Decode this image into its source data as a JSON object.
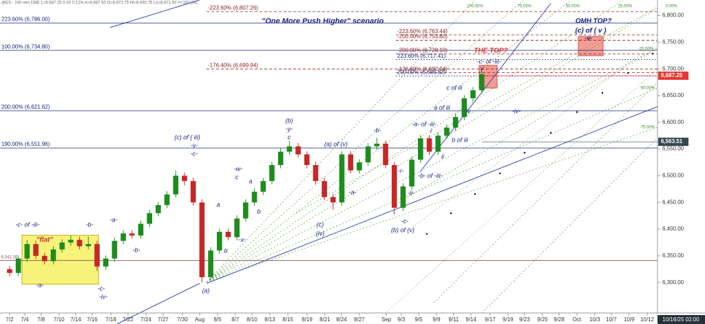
{
  "chart_data": {
    "type": "candlestick",
    "header": "@ES - 240 min  CME  L=6,687.25  0.00  0.12%  A=6,687.50  O=6,673.75  Hi=6,690.75  Lo=6,671.50  V=162,061",
    "x": [
      1,
      1.5,
      2,
      2.5,
      3,
      3.5,
      4,
      4.5,
      5,
      5.5,
      6,
      6.5,
      7,
      7.5,
      8,
      8.5,
      9,
      9.5,
      10,
      10.5,
      11,
      11.5,
      12,
      12.5,
      13,
      13.5,
      14,
      14.5,
      15,
      15.5,
      16,
      16.5,
      17,
      17.5,
      18,
      18.5,
      19,
      19.5,
      20,
      20.5,
      21,
      21.5,
      22,
      22.5,
      23,
      23.5,
      24,
      24.5,
      25,
      25.5,
      26,
      26.5,
      27,
      27.5,
      28
    ],
    "open": [
      6325,
      6318,
      6345,
      6372,
      6350,
      6340,
      6362,
      6375,
      6380,
      6368,
      6372,
      6330,
      6345,
      6378,
      6392,
      6388,
      6410,
      6430,
      6445,
      6465,
      6500,
      6490,
      6450,
      6310,
      6360,
      6395,
      6385,
      6420,
      6450,
      6470,
      6490,
      6520,
      6545,
      6555,
      6540,
      6520,
      6490,
      6460,
      6450,
      6540,
      6510,
      6525,
      6555,
      6560,
      6520,
      6440,
      6480,
      6530,
      6570,
      6545,
      6575,
      6590,
      6610,
      6645,
      6660
    ],
    "close": [
      6318,
      6345,
      6372,
      6350,
      6340,
      6362,
      6375,
      6380,
      6368,
      6372,
      6330,
      6345,
      6378,
      6392,
      6388,
      6410,
      6430,
      6445,
      6465,
      6500,
      6490,
      6450,
      6310,
      6360,
      6395,
      6385,
      6420,
      6450,
      6470,
      6490,
      6520,
      6545,
      6555,
      6540,
      6520,
      6490,
      6460,
      6450,
      6540,
      6510,
      6525,
      6555,
      6560,
      6520,
      6440,
      6480,
      6530,
      6570,
      6545,
      6575,
      6590,
      6610,
      6645,
      6660,
      6690
    ],
    "high": [
      6331,
      6351,
      6380,
      6378,
      6356,
      6368,
      6381,
      6388,
      6386,
      6386,
      6378,
      6351,
      6384,
      6398,
      6398,
      6416,
      6436,
      6451,
      6471,
      6510,
      6506,
      6496,
      6456,
      6366,
      6401,
      6401,
      6426,
      6456,
      6476,
      6496,
      6526,
      6551,
      6565,
      6561,
      6546,
      6526,
      6496,
      6466,
      6546,
      6546,
      6531,
      6561,
      6571,
      6566,
      6526,
      6486,
      6536,
      6576,
      6576,
      6581,
      6596,
      6616,
      6651,
      6666,
      6700
    ],
    "low": [
      6312,
      6312,
      6339,
      6344,
      6334,
      6334,
      6356,
      6369,
      6362,
      6362,
      6322,
      6324,
      6339,
      6372,
      6382,
      6382,
      6404,
      6424,
      6439,
      6459,
      6482,
      6444,
      6300,
      6304,
      6354,
      6379,
      6379,
      6414,
      6444,
      6464,
      6484,
      6514,
      6539,
      6534,
      6514,
      6484,
      6454,
      6436,
      6444,
      6504,
      6504,
      6519,
      6549,
      6514,
      6427,
      6434,
      6474,
      6524,
      6539,
      6539,
      6569,
      6584,
      6604,
      6639,
      6654
    ],
    "up_color": "#1e8c1e",
    "down_color": "#c62828",
    "xlim": [
      0.45,
      38.05
    ],
    "xticks": [
      {
        "value": 1,
        "label": "7/2"
      },
      {
        "value": 1.87,
        "label": "7/4"
      },
      {
        "value": 2.8,
        "label": "7/8"
      },
      {
        "value": 3.83,
        "label": "7/10"
      },
      {
        "value": 4.78,
        "label": "7/14"
      },
      {
        "value": 5.72,
        "label": "7/16"
      },
      {
        "value": 6.79,
        "label": "7/18"
      },
      {
        "value": 7.77,
        "label": "7/22"
      },
      {
        "value": 8.8,
        "label": "7/24"
      },
      {
        "value": 9.78,
        "label": "7/27"
      },
      {
        "value": 10.88,
        "label": "7/30"
      },
      {
        "value": 11.87,
        "label": "Aug"
      },
      {
        "value": 12.89,
        "label": "8/5"
      },
      {
        "value": 13.91,
        "label": "8/7"
      },
      {
        "value": 14.86,
        "label": "8/10"
      },
      {
        "value": 15.88,
        "label": "8/13"
      },
      {
        "value": 16.91,
        "label": "8/15"
      },
      {
        "value": 18.01,
        "label": "8/19"
      },
      {
        "value": 19.03,
        "label": "8/21"
      },
      {
        "value": 19.98,
        "label": "8/24"
      },
      {
        "value": 21,
        "label": "8/27"
      },
      {
        "value": 22.54,
        "label": "Sep"
      },
      {
        "value": 23.4,
        "label": "9/3"
      },
      {
        "value": 24.39,
        "label": "9/5"
      },
      {
        "value": 25.41,
        "label": "9/9"
      },
      {
        "value": 26.39,
        "label": "9/11"
      },
      {
        "value": 27.38,
        "label": "9/14"
      },
      {
        "value": 28.48,
        "label": "9/17"
      },
      {
        "value": 29.5,
        "label": "9/19"
      },
      {
        "value": 30.45,
        "label": "9/23"
      },
      {
        "value": 31.47,
        "label": "9/25"
      },
      {
        "value": 32.42,
        "label": "9/28"
      },
      {
        "value": 33.44,
        "label": "Oct"
      },
      {
        "value": 34.46,
        "label": "10/3"
      },
      {
        "value": 35.41,
        "label": "10/7"
      },
      {
        "value": 36.43,
        "label": "10/9"
      },
      {
        "value": 37.46,
        "label": "10/12"
      }
    ],
    "last_time": "10/16/25 02:00",
    "ylim": [
      6243,
      6829
    ],
    "yticks": [
      {
        "value": 6300,
        "label": "6,300.00"
      },
      {
        "value": 6350,
        "label": "6,350.00"
      },
      {
        "value": 6400,
        "label": "6,400.00"
      },
      {
        "value": 6450,
        "label": "6,450.00"
      },
      {
        "value": 6500,
        "label": "6,500.00"
      },
      {
        "value": 6550,
        "label": "6,550.00"
      },
      {
        "value": 6600,
        "label": "6,600.00"
      },
      {
        "value": 6650,
        "label": "6,650.00"
      },
      {
        "value": 6700,
        "label": "6,700.00"
      },
      {
        "value": 6750,
        "label": "6,750.00"
      },
      {
        "value": 6800,
        "label": "6,800.00"
      }
    ],
    "levels": [
      {
        "label": "223.60% (6,786.00)",
        "value": 6786,
        "color": "#1a237e"
      },
      {
        "label": "100.00% (6,734.80)",
        "value": 6734.8,
        "color": "#1a237e"
      },
      {
        "label": "200.00% (6,621.62)",
        "value": 6621.62,
        "color": "#1a237e"
      },
      {
        "label": "190.00% (6,551.96)",
        "value": 6551.96,
        "color": "#1a237e"
      },
      {
        "label": "6,341.26",
        "value": 6341.26,
        "color": "#8b4a4a"
      },
      {
        "label": "-223.60% (6,807.26)",
        "value": 6807.26,
        "color": "#8b1a1a"
      },
      {
        "label": "-176.40% (6,699.94)",
        "value": 6699.94,
        "color": "#8b1a1a"
      },
      {
        "label": "-223.60% (6,763.44)",
        "value": 6763.44,
        "color": "#8b1a1a"
      },
      {
        "label": "-200.00% (6,753.60)",
        "value": 6753.6,
        "color": "#8b1a1a"
      },
      {
        "label": "-200.00% (6,728.19)",
        "value": 6728.19,
        "color": "#8b1a1a"
      },
      {
        "label": "223.60% (6,717.41)",
        "value": 6717.41,
        "color": "#1a237e"
      },
      {
        "label": "-176.40% (6,692.94)",
        "value": 6692.94,
        "color": "#8b1a1a"
      },
      {
        "label": "200.00% (6,686.83)",
        "value": 6686.83,
        "color": "#1a237e"
      }
    ],
    "price_tags": [
      {
        "label": "6,687.25",
        "value": 6687.25,
        "color": "#e53935"
      },
      {
        "label": "6,563.51",
        "value": 6563.51,
        "color": "#37474f"
      }
    ],
    "fan_labels": [
      "100.00%",
      "75.00%",
      "50.00%",
      "25.00%",
      "0.00%",
      "-25.00%",
      "-50.00%",
      "-75.00%"
    ],
    "annotations": [
      {
        "text": "-c- of -iii-",
        "color": "#1a237e"
      },
      {
        "text": "-a-",
        "color": "#1a237e"
      },
      {
        "text": "-b-",
        "color": "#1a237e"
      },
      {
        "text": "-c-",
        "color": "#1a237e"
      },
      {
        "text": "-iv-",
        "color": "#1a237e"
      },
      {
        "text": "-a-",
        "color": "#1a237e"
      },
      {
        "text": "-b-",
        "color": "#1a237e"
      },
      {
        "text": "(c) of ( iii)",
        "color": "#1a237e"
      },
      {
        "text": "-v-",
        "color": "#1a237e"
      },
      {
        "text": "-c-",
        "color": "#1a237e"
      },
      {
        "text": "(a)",
        "color": "#1a237e"
      },
      {
        "text": "a",
        "color": "#1a237e"
      },
      {
        "text": "b",
        "color": "#1a237e"
      },
      {
        "text": "-x-",
        "color": "#1a237e"
      },
      {
        "text": "-w-",
        "color": "#1a237e"
      },
      {
        "text": "c",
        "color": "#1a237e"
      },
      {
        "text": "a",
        "color": "#1a237e"
      },
      {
        "text": "b",
        "color": "#1a237e"
      },
      {
        "text": "(b)",
        "color": "#1a237e"
      },
      {
        "text": "-y-",
        "color": "#1a237e"
      },
      {
        "text": "c",
        "color": "#1a237e"
      },
      {
        "text": "(c)",
        "color": "#1a237e"
      },
      {
        "text": "(iv)",
        "color": "#1a237e"
      },
      {
        "text": "(a) of (v)",
        "color": "#1a237e"
      },
      {
        "text": "-a-",
        "color": "#1a237e"
      },
      {
        "text": "-b-",
        "color": "#1a237e"
      },
      {
        "text": "-c-",
        "color": "#1a237e"
      },
      {
        "text": "(b) of (v)",
        "color": "#1a237e"
      },
      {
        "text": "-i-",
        "color": "#1a237e"
      },
      {
        "text": "-ii-",
        "color": "#1a237e"
      },
      {
        "text": "-a- of -iii-",
        "color": "#1a237e"
      },
      {
        "text": "i",
        "color": "#1a237e"
      },
      {
        "text": "ii",
        "color": "#1a237e"
      },
      {
        "text": "-b- of -iii-",
        "color": "#1a237e"
      },
      {
        "text": "b of iii",
        "color": "#1a237e"
      },
      {
        "text": "a of iii",
        "color": "#1a237e"
      },
      {
        "text": "c of iii",
        "color": "#1a237e"
      },
      {
        "text": "iv",
        "color": "#1a237e"
      },
      {
        "text": "v",
        "color": "#1a237e"
      },
      {
        "text": "-c- of -iii-",
        "color": "#1a237e"
      },
      {
        "text": "-iv-",
        "color": "#1a237e"
      },
      {
        "text": "\"One More Push Higher\" scenario",
        "color": "#1a237e"
      },
      {
        "text": "OMH TOP?",
        "color": "#1a237e"
      },
      {
        "text": "(c) of ( v )",
        "color": "#1a237e"
      },
      {
        "text": "-v-",
        "color": "#1a237e"
      },
      {
        "text": "\"flat\"",
        "color": "#d32f2f"
      },
      {
        "text": "THE TOP?",
        "color": "#d32f2f"
      }
    ]
  }
}
